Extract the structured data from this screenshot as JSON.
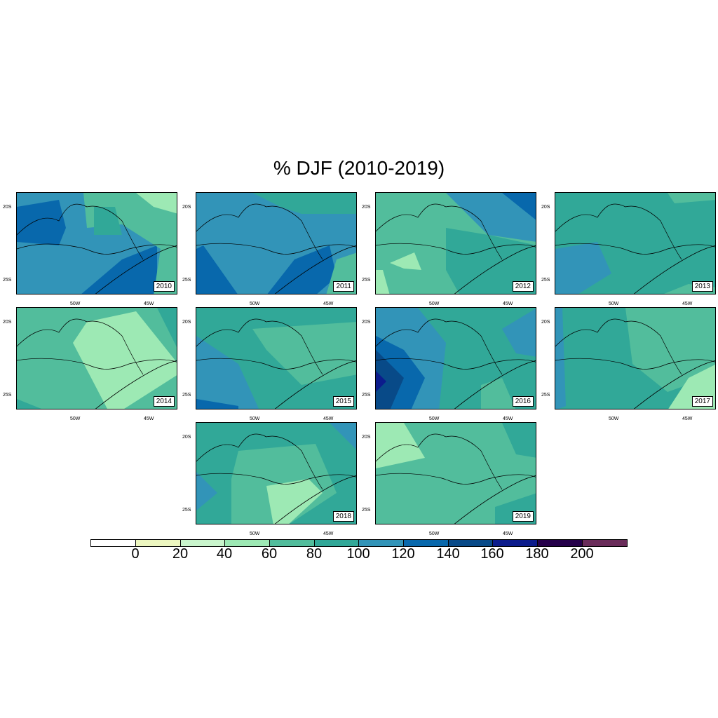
{
  "title": "% DJF (2010-2019)",
  "axes": {
    "lat_ticks": [
      "20S",
      "25S"
    ],
    "lon_ticks": [
      "50W",
      "45W"
    ]
  },
  "panels": [
    {
      "year": "2010",
      "base": "#3294b8"
    },
    {
      "year": "2011",
      "base": "#3294b8"
    },
    {
      "year": "2012",
      "base": "#52bd9c"
    },
    {
      "year": "2013",
      "base": "#31a898"
    },
    {
      "year": "2014",
      "base": "#52bd9c"
    },
    {
      "year": "2015",
      "base": "#31a898"
    },
    {
      "year": "2016",
      "base": "#31a898"
    },
    {
      "year": "2017",
      "base": "#31a898"
    },
    {
      "year": "2018",
      "base": "#31a898"
    },
    {
      "year": "2019",
      "base": "#52bd9c"
    }
  ],
  "colorbar": {
    "labels": [
      "0",
      "20",
      "40",
      "60",
      "80",
      "100",
      "120",
      "140",
      "160",
      "180",
      "200"
    ],
    "colors": [
      "#ffffff",
      "#edf7c0",
      "#c9f5cc",
      "#9de9b4",
      "#52bd9c",
      "#31a898",
      "#3294b8",
      "#0868ac",
      "#084a88",
      "#0c1c8c",
      "#25004a",
      "#6a2c5a"
    ]
  }
}
